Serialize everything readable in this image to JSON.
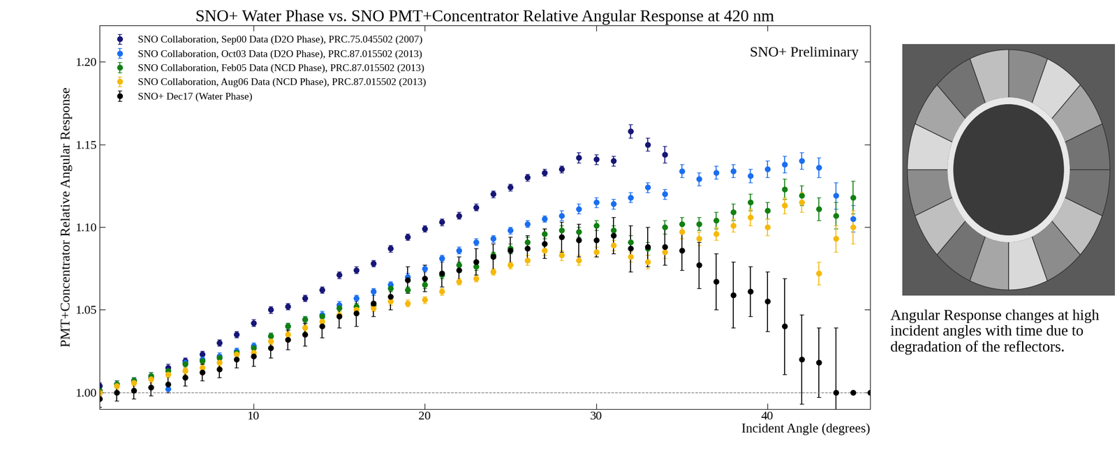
{
  "chart_data": {
    "type": "scatter",
    "title": "SNO+ Water Phase vs. SNO PMT+Concentrator Relative Angular Response at 420 nm",
    "x_label": "Incident Angle (degrees)",
    "y_label": "PMT+Concentrator Relative Angular Response",
    "annotations": [
      "SNO+ Preliminary",
      "Angular Response changes at high incident angles with time due to degradation of the reflectors."
    ],
    "xlim": [
      1,
      46
    ],
    "ylim": [
      0.99,
      1.222
    ],
    "xticks": [
      10,
      20,
      30,
      40
    ],
    "yticks": [
      {
        "value": 1.0,
        "label": "1.00"
      },
      {
        "value": 1.05,
        "label": "1.05"
      },
      {
        "value": 1.1,
        "label": "1.10"
      },
      {
        "value": 1.15,
        "label": "1.15"
      },
      {
        "value": 1.2,
        "label": "1.20"
      }
    ],
    "legend": "upper left",
    "grid": false,
    "marker": "o",
    "series": [
      {
        "name": "SNO Collaboration, Sep00 Data (D2O Phase), PRC.75.045502 (2007)",
        "color": "#161677",
        "x": [
          1,
          2,
          3,
          4,
          5,
          6,
          7,
          8,
          9,
          10,
          11,
          12,
          13,
          14,
          15,
          16,
          17,
          18,
          19,
          20,
          21,
          22,
          23,
          24,
          25,
          26,
          27,
          28,
          29,
          30,
          31,
          32,
          33,
          34
        ],
        "values": [
          1.004,
          1.005,
          1.007,
          1.009,
          1.015,
          1.019,
          1.023,
          1.03,
          1.035,
          1.042,
          1.05,
          1.052,
          1.057,
          1.062,
          1.071,
          1.074,
          1.078,
          1.087,
          1.094,
          1.099,
          1.103,
          1.107,
          1.112,
          1.12,
          1.124,
          1.13,
          1.133,
          1.135,
          1.142,
          1.141,
          1.14,
          1.158,
          1.15,
          1.144
        ],
        "errors": [
          0.002,
          0.002,
          0.002,
          0.002,
          0.002,
          0.002,
          0.002,
          0.002,
          0.002,
          0.002,
          0.002,
          0.002,
          0.002,
          0.002,
          0.002,
          0.002,
          0.002,
          0.002,
          0.002,
          0.002,
          0.002,
          0.002,
          0.002,
          0.002,
          0.002,
          0.002,
          0.002,
          0.002,
          0.003,
          0.003,
          0.003,
          0.004,
          0.004,
          0.005
        ]
      },
      {
        "name": "SNO Collaboration, Oct03 Data (D2O Phase), PRC.87.015502 (2013)",
        "color": "#1a6ef0",
        "x": [
          1,
          2,
          3,
          4,
          5,
          6,
          7,
          8,
          9,
          10,
          11,
          12,
          13,
          14,
          15,
          16,
          17,
          18,
          19,
          20,
          21,
          22,
          23,
          24,
          25,
          26,
          27,
          28,
          29,
          30,
          31,
          32,
          33,
          34,
          35,
          36,
          37,
          38,
          39,
          40,
          41,
          42,
          43,
          44,
          45
        ],
        "values": [
          1.0,
          1.005,
          1.007,
          1.01,
          1.002,
          1.018,
          1.02,
          1.022,
          1.025,
          1.028,
          1.034,
          1.04,
          1.044,
          1.047,
          1.053,
          1.057,
          1.061,
          1.065,
          1.07,
          1.075,
          1.081,
          1.086,
          1.091,
          1.093,
          1.098,
          1.102,
          1.105,
          1.107,
          1.111,
          1.115,
          1.114,
          1.118,
          1.124,
          1.12,
          1.134,
          1.129,
          1.133,
          1.134,
          1.131,
          1.135,
          1.138,
          1.14,
          1.136,
          1.119,
          1.105
        ],
        "errors": [
          0.002,
          0.002,
          0.002,
          0.002,
          0.002,
          0.002,
          0.002,
          0.002,
          0.002,
          0.002,
          0.002,
          0.002,
          0.002,
          0.002,
          0.002,
          0.002,
          0.002,
          0.002,
          0.002,
          0.002,
          0.002,
          0.002,
          0.002,
          0.002,
          0.002,
          0.002,
          0.002,
          0.003,
          0.003,
          0.003,
          0.003,
          0.003,
          0.003,
          0.003,
          0.004,
          0.004,
          0.004,
          0.004,
          0.004,
          0.005,
          0.005,
          0.005,
          0.006,
          0.008,
          0.008
        ]
      },
      {
        "name": "SNO Collaboration, Feb05 Data (NCD Phase), PRC.87.015502 (2013)",
        "color": "#118011",
        "x": [
          1,
          2,
          3,
          4,
          5,
          6,
          7,
          8,
          9,
          10,
          11,
          12,
          13,
          14,
          15,
          16,
          17,
          18,
          19,
          20,
          21,
          22,
          23,
          24,
          25,
          26,
          27,
          28,
          29,
          30,
          31,
          32,
          33,
          34,
          35,
          36,
          37,
          38,
          39,
          40,
          41,
          42,
          43,
          44,
          45
        ],
        "values": [
          1.001,
          1.005,
          1.007,
          1.01,
          1.013,
          1.017,
          1.019,
          1.021,
          1.024,
          1.027,
          1.034,
          1.04,
          1.044,
          1.046,
          1.051,
          1.052,
          1.053,
          1.063,
          1.062,
          1.065,
          1.071,
          1.077,
          1.076,
          1.083,
          1.087,
          1.091,
          1.096,
          1.098,
          1.097,
          1.101,
          1.098,
          1.091,
          1.087,
          1.1,
          1.102,
          1.102,
          1.104,
          1.109,
          1.115,
          1.11,
          1.123,
          1.119,
          1.111,
          1.107,
          1.118
        ],
        "errors": [
          0.002,
          0.002,
          0.002,
          0.002,
          0.002,
          0.002,
          0.002,
          0.002,
          0.002,
          0.002,
          0.002,
          0.002,
          0.002,
          0.002,
          0.002,
          0.002,
          0.002,
          0.002,
          0.002,
          0.002,
          0.002,
          0.002,
          0.002,
          0.002,
          0.003,
          0.003,
          0.003,
          0.003,
          0.003,
          0.003,
          0.003,
          0.004,
          0.004,
          0.004,
          0.004,
          0.004,
          0.005,
          0.005,
          0.005,
          0.005,
          0.006,
          0.006,
          0.007,
          0.008,
          0.01
        ]
      },
      {
        "name": "SNO Collaboration, Aug06 Data (NCD Phase), PRC.87.015502 (2013)",
        "color": "#f5b90a",
        "x": [
          1,
          2,
          3,
          4,
          5,
          6,
          7,
          8,
          9,
          10,
          11,
          12,
          13,
          14,
          15,
          16,
          17,
          18,
          19,
          20,
          21,
          22,
          23,
          24,
          25,
          26,
          27,
          28,
          29,
          30,
          31,
          32,
          33,
          34,
          35,
          36,
          37,
          38,
          39,
          40,
          41,
          42,
          43,
          44,
          45
        ],
        "values": [
          1.0,
          1.004,
          1.006,
          1.008,
          1.011,
          1.013,
          1.015,
          1.018,
          1.023,
          1.024,
          1.031,
          1.035,
          1.039,
          1.043,
          1.047,
          1.05,
          1.051,
          1.055,
          1.054,
          1.056,
          1.061,
          1.067,
          1.069,
          1.073,
          1.077,
          1.08,
          1.086,
          1.083,
          1.08,
          1.085,
          1.089,
          1.082,
          1.079,
          1.085,
          1.097,
          1.093,
          1.096,
          1.101,
          1.106,
          1.1,
          1.113,
          1.115,
          1.072,
          1.093,
          1.1
        ],
        "errors": [
          0.002,
          0.002,
          0.002,
          0.002,
          0.002,
          0.002,
          0.002,
          0.002,
          0.002,
          0.002,
          0.002,
          0.002,
          0.002,
          0.002,
          0.002,
          0.002,
          0.002,
          0.002,
          0.002,
          0.002,
          0.002,
          0.002,
          0.002,
          0.002,
          0.002,
          0.003,
          0.003,
          0.003,
          0.003,
          0.003,
          0.003,
          0.003,
          0.004,
          0.004,
          0.004,
          0.004,
          0.004,
          0.004,
          0.005,
          0.005,
          0.005,
          0.006,
          0.007,
          0.008,
          0.01
        ]
      },
      {
        "name": "SNO+ Dec17 (Water Phase)",
        "color": "#000000",
        "x": [
          1,
          2,
          3,
          4,
          5,
          6,
          7,
          8,
          9,
          10,
          11,
          12,
          13,
          14,
          15,
          16,
          17,
          18,
          19,
          20,
          21,
          22,
          23,
          24,
          25,
          26,
          27,
          28,
          29,
          30,
          31,
          32,
          33,
          34,
          35,
          36,
          37,
          38,
          39,
          40,
          41,
          42,
          43,
          44,
          45,
          46
        ],
        "values": [
          0.996,
          1.0,
          1.001,
          1.003,
          1.005,
          1.009,
          1.012,
          1.014,
          1.02,
          1.022,
          1.027,
          1.032,
          1.035,
          1.04,
          1.046,
          1.048,
          1.054,
          1.058,
          1.068,
          1.069,
          1.072,
          1.074,
          1.079,
          1.082,
          1.086,
          1.087,
          1.09,
          1.094,
          1.092,
          1.092,
          1.095,
          1.087,
          1.088,
          1.088,
          1.086,
          1.077,
          1.067,
          1.059,
          1.061,
          1.055,
          1.04,
          1.02,
          1.018,
          1.0,
          1.0,
          1.0
        ],
        "errors": [
          0.005,
          0.005,
          0.005,
          0.005,
          0.005,
          0.005,
          0.005,
          0.005,
          0.005,
          0.006,
          0.006,
          0.006,
          0.007,
          0.007,
          0.007,
          0.008,
          0.008,
          0.008,
          0.008,
          0.008,
          0.008,
          0.008,
          0.008,
          0.008,
          0.008,
          0.008,
          0.009,
          0.009,
          0.01,
          0.01,
          0.011,
          0.014,
          0.012,
          0.011,
          0.012,
          0.014,
          0.017,
          0.02,
          0.015,
          0.018,
          0.029,
          0.027,
          0.021,
          0.039,
          0.0,
          0.0
        ]
      }
    ]
  }
}
